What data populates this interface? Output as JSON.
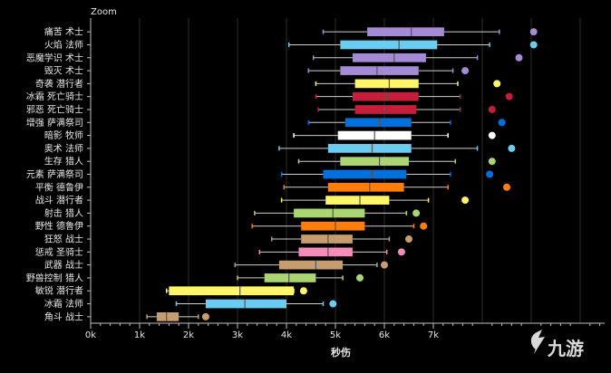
{
  "zoom_label": "Zoom",
  "watermark": "九游",
  "colors": {
    "background": "#000000",
    "grid": "#2b2b2b",
    "axis": "#bfbfbf",
    "whisker": "#cfcfcf",
    "median": "#555555",
    "text": "#e6e6e6"
  },
  "chart_data": {
    "type": "box",
    "xlabel": "秒伤",
    "ylabel": "",
    "title": "",
    "xlim": [
      0,
      10500
    ],
    "xticks": [
      {
        "value": 0,
        "label": "0k"
      },
      {
        "value": 1000,
        "label": "1k"
      },
      {
        "value": 2000,
        "label": "2k"
      },
      {
        "value": 3000,
        "label": "3k"
      },
      {
        "value": 4000,
        "label": "4k"
      },
      {
        "value": 5000,
        "label": "5k"
      },
      {
        "value": 6000,
        "label": "6k"
      },
      {
        "value": 7000,
        "label": "7k"
      }
    ],
    "grid": true,
    "series": [
      {
        "label": "痛苦 术士",
        "color": "#a58ad6",
        "min": 4750,
        "q1": 5650,
        "median": 6550,
        "q3": 7220,
        "max": 8350,
        "outlier": 9050
      },
      {
        "label": "火焰 法师",
        "color": "#69ccf0",
        "min": 4050,
        "q1": 5100,
        "median": 6300,
        "q3": 7080,
        "max": 8150,
        "outlier": 9050
      },
      {
        "label": "恶魔学识 术士",
        "color": "#a58ad6",
        "min": 4550,
        "q1": 5350,
        "median": 6200,
        "q3": 6850,
        "max": 7900,
        "outlier": 8750
      },
      {
        "label": "毁灭 术士",
        "color": "#a58ad6",
        "min": 4450,
        "q1": 5100,
        "median": 5850,
        "q3": 6700,
        "max": 7400,
        "outlier": 7650
      },
      {
        "label": "奇袭 潜行者",
        "color": "#fff569",
        "min": 4600,
        "q1": 5400,
        "median": 6100,
        "q3": 6700,
        "max": 7500,
        "outlier": 8300
      },
      {
        "label": "冰霜 死亡骑士",
        "color": "#c41e3a",
        "min": 4600,
        "q1": 5350,
        "median": 6050,
        "q3": 6700,
        "max": 7550,
        "outlier": 8550
      },
      {
        "label": "邪恶 死亡骑士",
        "color": "#c41e3a",
        "min": 4650,
        "q1": 5400,
        "median": 6000,
        "q3": 6650,
        "max": 7550,
        "outlier": 8200
      },
      {
        "label": "增强 萨满祭司",
        "color": "#0070de",
        "min": 4450,
        "q1": 5200,
        "median": 5900,
        "q3": 6550,
        "max": 7350,
        "outlier": 8400
      },
      {
        "label": "暗影 牧师",
        "color": "#ffffff",
        "min": 4150,
        "q1": 5050,
        "median": 5800,
        "q3": 6550,
        "max": 7300,
        "outlier": 8200
      },
      {
        "label": "奥术 法师",
        "color": "#69ccf0",
        "min": 3850,
        "q1": 4850,
        "median": 5750,
        "q3": 6550,
        "max": 7900,
        "outlier": 8600
      },
      {
        "label": "生存 猎人",
        "color": "#abd473",
        "min": 4250,
        "q1": 5100,
        "median": 5900,
        "q3": 6500,
        "max": 7450,
        "outlier": 8200
      },
      {
        "label": "元素 萨满祭司",
        "color": "#0070de",
        "min": 3900,
        "q1": 4750,
        "median": 5750,
        "q3": 6450,
        "max": 7350,
        "outlier": 8150
      },
      {
        "label": "平衡 德鲁伊",
        "color": "#ff7d0a",
        "min": 3950,
        "q1": 4850,
        "median": 5700,
        "q3": 6400,
        "max": 7300,
        "outlier": 8500
      },
      {
        "label": "战斗 潜行者",
        "color": "#fff569",
        "min": 3900,
        "q1": 4800,
        "median": 5500,
        "q3": 6100,
        "max": 6900,
        "outlier": 7650
      },
      {
        "label": "射击 猎人",
        "color": "#abd473",
        "min": 3350,
        "q1": 4150,
        "median": 4950,
        "q3": 5600,
        "max": 6450,
        "outlier": 6650
      },
      {
        "label": "野性 德鲁伊",
        "color": "#ff7d0a",
        "min": 3300,
        "q1": 4300,
        "median": 5000,
        "q3": 5600,
        "max": 6600,
        "outlier": 6800
      },
      {
        "label": "狂怒 战士",
        "color": "#c79c6e",
        "min": 3700,
        "q1": 4300,
        "median": 4850,
        "q3": 5350,
        "max": 6100,
        "outlier": 6500
      },
      {
        "label": "惩戒 圣骑士",
        "color": "#f58cba",
        "min": 3450,
        "q1": 4250,
        "median": 4850,
        "q3": 5350,
        "max": 6050,
        "outlier": 6350
      },
      {
        "label": "武器 战士",
        "color": "#c79c6e",
        "min": 2950,
        "q1": 3850,
        "median": 4600,
        "q3": 5150,
        "max": 5850,
        "outlier": 6000
      },
      {
        "label": "野兽控制 猎人",
        "color": "#abd473",
        "min": 3000,
        "q1": 3550,
        "median": 4050,
        "q3": 4600,
        "max": 5150,
        "outlier": 5500
      },
      {
        "label": "敏锐 潜行者",
        "color": "#fff569",
        "min": 1550,
        "q1": 1600,
        "median": 3050,
        "q3": 4150,
        "max": 4150,
        "outlier": 4350
      },
      {
        "label": "冰霜 法师",
        "color": "#69ccf0",
        "min": 1750,
        "q1": 2350,
        "median": 3150,
        "q3": 4000,
        "max": 4750,
        "outlier": 4950
      },
      {
        "label": "角斗 战士",
        "color": "#c79c6e",
        "min": 1150,
        "q1": 1350,
        "median": 1550,
        "q3": 1800,
        "max": 2200,
        "outlier": 2350
      }
    ]
  }
}
